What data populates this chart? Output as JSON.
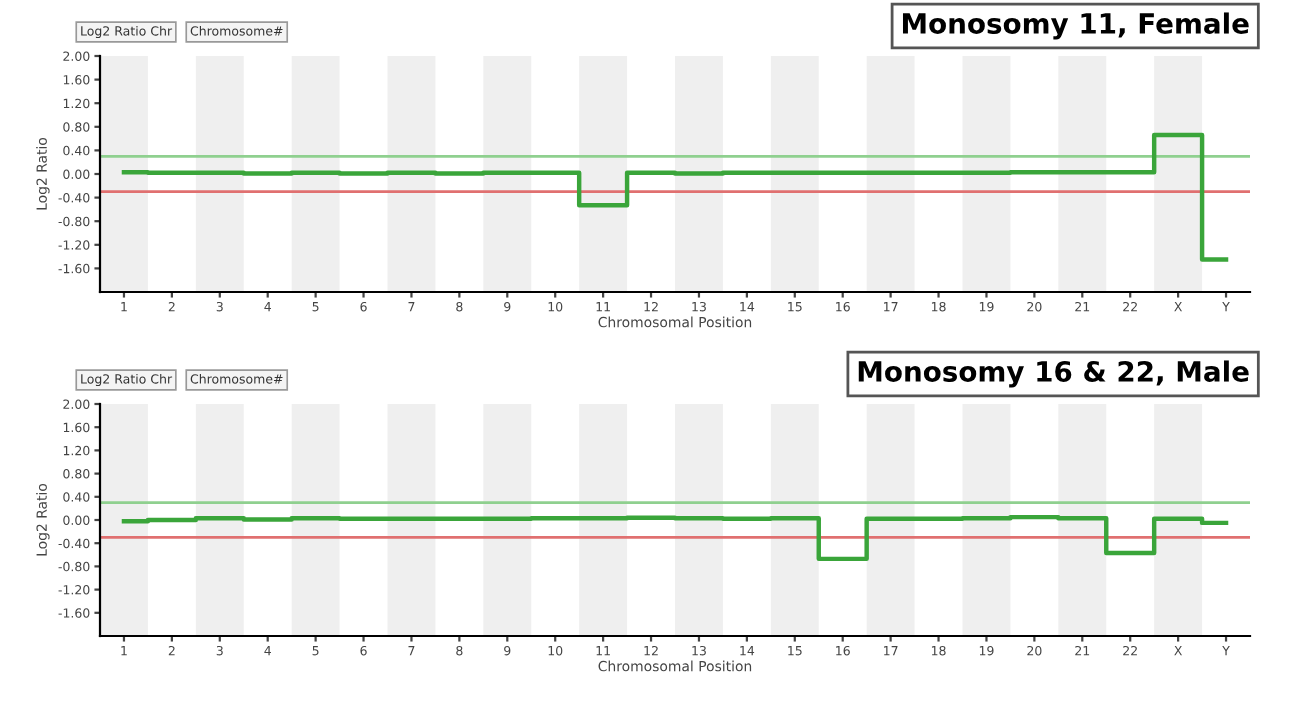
{
  "chart_data": [
    {
      "type": "step",
      "title": "Monosomy 11, Female",
      "xlabel": "Chromosomal Position",
      "ylabel": "Log2 Ratio",
      "annotations": [
        "Log2 Ratio Chr",
        "Chromosome#"
      ],
      "categories": [
        "1",
        "2",
        "3",
        "4",
        "5",
        "6",
        "7",
        "8",
        "9",
        "10",
        "11",
        "12",
        "13",
        "14",
        "15",
        "16",
        "17",
        "18",
        "19",
        "20",
        "21",
        "22",
        "X",
        "Y"
      ],
      "series": [
        {
          "color": "#3aa53a",
          "values": [
            0.03,
            0.02,
            0.02,
            0.01,
            0.02,
            0.01,
            0.02,
            0.01,
            0.02,
            0.02,
            -0.53,
            0.02,
            0.01,
            0.02,
            0.02,
            0.02,
            0.02,
            0.02,
            0.02,
            0.03,
            0.03,
            0.03,
            0.66,
            -1.45
          ]
        }
      ],
      "ylim": [
        -2.0,
        2.0
      ],
      "yticks": [
        {
          "value": 2.0,
          "label": "2.00"
        },
        {
          "value": 1.6,
          "label": "1.60"
        },
        {
          "value": 1.2,
          "label": "1.20"
        },
        {
          "value": 0.8,
          "label": "0.80"
        },
        {
          "value": 0.4,
          "label": "0.40"
        },
        {
          "value": 0.0,
          "label": "0.00"
        },
        {
          "value": -0.4,
          "label": "-0.40"
        },
        {
          "value": -0.8,
          "label": "-0.80"
        },
        {
          "value": -1.2,
          "label": "-1.20"
        },
        {
          "value": -1.6,
          "label": "-1.60"
        }
      ],
      "ref_lines": [
        {
          "axis": "y",
          "value": 0.3,
          "color": "#8fd08f"
        },
        {
          "axis": "y",
          "value": -0.3,
          "color": "#e07070"
        }
      ],
      "bands": [
        {
          "axis": "x",
          "from": "1",
          "to": "1",
          "color": "#efefef"
        },
        {
          "axis": "x",
          "from": "3",
          "to": "3",
          "color": "#efefef"
        },
        {
          "axis": "x",
          "from": "5",
          "to": "5",
          "color": "#efefef"
        },
        {
          "axis": "x",
          "from": "7",
          "to": "7",
          "color": "#efefef"
        },
        {
          "axis": "x",
          "from": "9",
          "to": "9",
          "color": "#efefef"
        },
        {
          "axis": "x",
          "from": "11",
          "to": "11",
          "color": "#efefef"
        },
        {
          "axis": "x",
          "from": "13",
          "to": "13",
          "color": "#efefef"
        },
        {
          "axis": "x",
          "from": "15",
          "to": "15",
          "color": "#efefef"
        },
        {
          "axis": "x",
          "from": "17",
          "to": "17",
          "color": "#efefef"
        },
        {
          "axis": "x",
          "from": "19",
          "to": "19",
          "color": "#efefef"
        },
        {
          "axis": "x",
          "from": "21",
          "to": "21",
          "color": "#efefef"
        },
        {
          "axis": "x",
          "from": "X",
          "to": "X",
          "color": "#efefef"
        }
      ]
    },
    {
      "type": "step",
      "title": "Monosomy 16 & 22, Male",
      "xlabel": "Chromosomal Position",
      "ylabel": "Log2 Ratio",
      "annotations": [
        "Log2 Ratio Chr",
        "Chromosome#"
      ],
      "categories": [
        "1",
        "2",
        "3",
        "4",
        "5",
        "6",
        "7",
        "8",
        "9",
        "10",
        "11",
        "12",
        "13",
        "14",
        "15",
        "16",
        "17",
        "18",
        "19",
        "20",
        "21",
        "22",
        "X",
        "Y"
      ],
      "series": [
        {
          "color": "#3aa53a",
          "values": [
            -0.02,
            0.0,
            0.03,
            0.01,
            0.03,
            0.02,
            0.02,
            0.02,
            0.02,
            0.03,
            0.03,
            0.04,
            0.03,
            0.02,
            0.03,
            -0.67,
            0.02,
            0.02,
            0.03,
            0.05,
            0.03,
            -0.57,
            0.02,
            -0.05
          ]
        }
      ],
      "ylim": [
        -2.0,
        2.0
      ],
      "yticks": [
        {
          "value": 2.0,
          "label": "2.00"
        },
        {
          "value": 1.6,
          "label": "1.60"
        },
        {
          "value": 1.2,
          "label": "1.20"
        },
        {
          "value": 0.8,
          "label": "0.80"
        },
        {
          "value": 0.4,
          "label": "0.40"
        },
        {
          "value": 0.0,
          "label": "0.00"
        },
        {
          "value": -0.4,
          "label": "-0.40"
        },
        {
          "value": -0.8,
          "label": "-0.80"
        },
        {
          "value": -1.2,
          "label": "-1.20"
        },
        {
          "value": -1.6,
          "label": "-1.60"
        }
      ],
      "ref_lines": [
        {
          "axis": "y",
          "value": 0.3,
          "color": "#8fd08f"
        },
        {
          "axis": "y",
          "value": -0.3,
          "color": "#e07070"
        }
      ],
      "bands": [
        {
          "axis": "x",
          "from": "1",
          "to": "1",
          "color": "#efefef"
        },
        {
          "axis": "x",
          "from": "3",
          "to": "3",
          "color": "#efefef"
        },
        {
          "axis": "x",
          "from": "5",
          "to": "5",
          "color": "#efefef"
        },
        {
          "axis": "x",
          "from": "7",
          "to": "7",
          "color": "#efefef"
        },
        {
          "axis": "x",
          "from": "9",
          "to": "9",
          "color": "#efefef"
        },
        {
          "axis": "x",
          "from": "11",
          "to": "11",
          "color": "#efefef"
        },
        {
          "axis": "x",
          "from": "13",
          "to": "13",
          "color": "#efefef"
        },
        {
          "axis": "x",
          "from": "15",
          "to": "15",
          "color": "#efefef"
        },
        {
          "axis": "x",
          "from": "17",
          "to": "17",
          "color": "#efefef"
        },
        {
          "axis": "x",
          "from": "19",
          "to": "19",
          "color": "#efefef"
        },
        {
          "axis": "x",
          "from": "21",
          "to": "21",
          "color": "#efefef"
        },
        {
          "axis": "x",
          "from": "X",
          "to": "X",
          "color": "#efefef"
        }
      ]
    }
  ]
}
